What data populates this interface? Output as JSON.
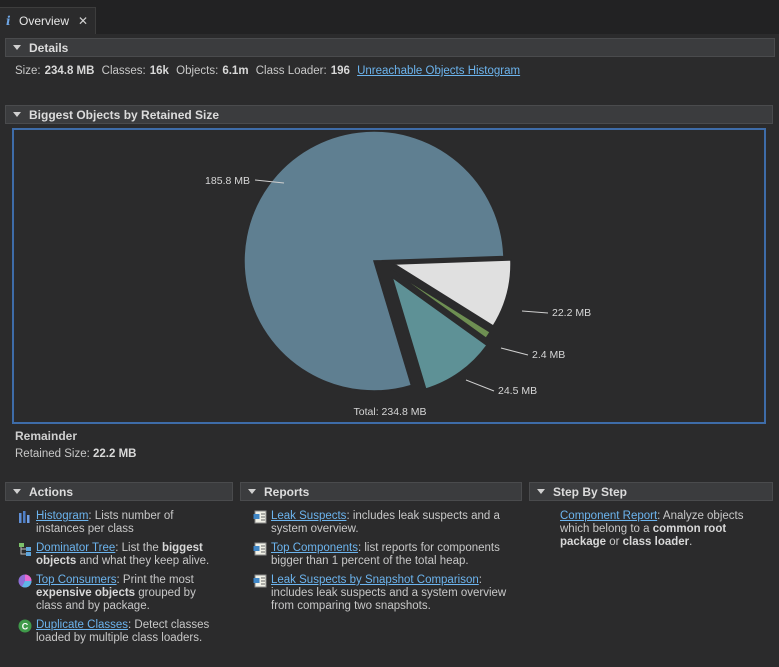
{
  "tab": {
    "title": "Overview",
    "icon": "info-icon"
  },
  "details": {
    "header": "Details",
    "size_label": "Size:",
    "size_value": "234.8 MB",
    "classes_label": "Classes:",
    "classes_value": "16k",
    "objects_label": "Objects:",
    "objects_value": "6.1m",
    "loader_label": "Class Loader:",
    "loader_value": "196",
    "histogram_link": "Unreachable Objects Histogram"
  },
  "biggest": {
    "header": "Biggest Objects by Retained Size"
  },
  "chart_data": {
    "type": "pie",
    "slices": [
      {
        "label": "185.8 MB",
        "value": 185.8,
        "color": "#5f7f91"
      },
      {
        "label": "22.2 MB",
        "value": 22.2,
        "color": "#e0e0e0"
      },
      {
        "label": "2.4 MB",
        "value": 2.4,
        "color": "#6e8f52"
      },
      {
        "label": "24.5 MB",
        "value": 24.5,
        "color": "#5e9196"
      }
    ],
    "total_label": "Total: 234.8 MB"
  },
  "remainder": {
    "title": "Remainder",
    "retained_label": "Retained Size:",
    "retained_value": "22.2 MB"
  },
  "actions": {
    "header": "Actions",
    "histogram": {
      "link": "Histogram",
      "text": ": Lists number of instances per class"
    },
    "dominator": {
      "link": "Dominator Tree",
      "text1": ": List the ",
      "bold1": "biggest objects",
      "text2": " and what they keep alive."
    },
    "consumers": {
      "link": "Top Consumers",
      "text1": ": Print the most ",
      "bold1": "expensive objects",
      "text2": " grouped by class and by package."
    },
    "duplicates": {
      "link": "Duplicate Classes",
      "text": ": Detect classes loaded by multiple class loaders."
    }
  },
  "reports": {
    "header": "Reports",
    "leak": {
      "link": "Leak Suspects",
      "text": ": includes leak suspects and a system overview."
    },
    "components": {
      "link": "Top Components",
      "text": ": list reports for components bigger than 1 percent of the total heap."
    },
    "comparison": {
      "link": "Leak Suspects by Snapshot Comparison",
      "text": ": includes leak suspects and a system overview from comparing two snapshots."
    }
  },
  "step": {
    "header": "Step By Step",
    "component": {
      "link": "Component Report",
      "text1": ": Analyze objects which belong to a ",
      "bold1": "common root package",
      "text2": " or ",
      "bold2": "class loader",
      "text3": "."
    }
  }
}
